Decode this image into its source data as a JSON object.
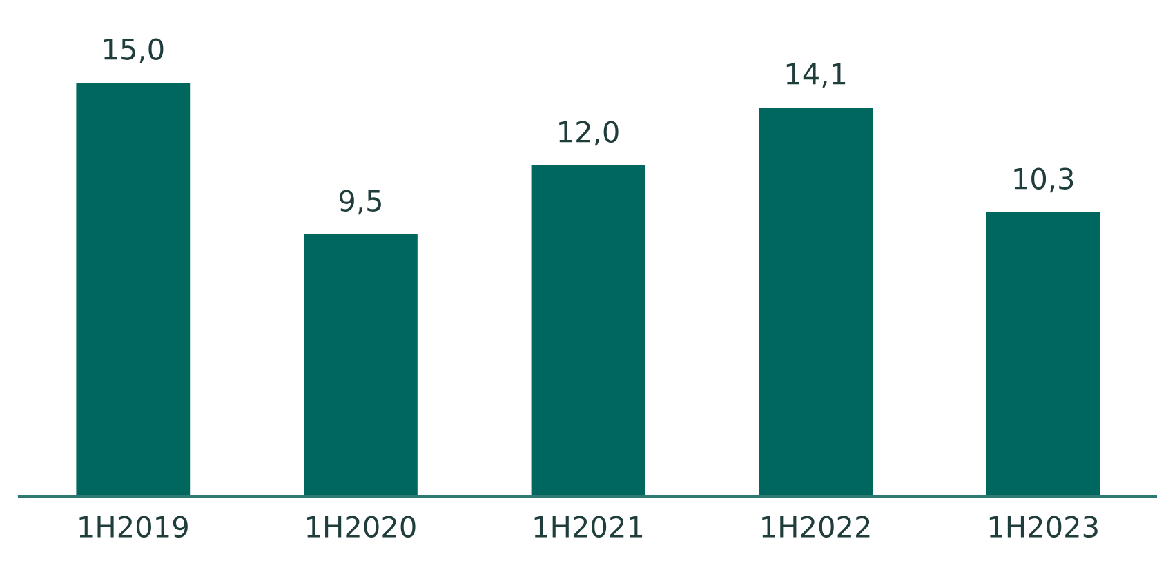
{
  "chart_data": {
    "type": "bar",
    "categories": [
      "1H2019",
      "1H2020",
      "1H2021",
      "1H2022",
      "1H2023"
    ],
    "values": [
      15.0,
      9.5,
      12.0,
      14.1,
      10.3
    ],
    "value_labels": [
      "15,0",
      "9,5",
      "12,0",
      "14,1",
      "10,3"
    ],
    "color": "#00675f",
    "tick_labels": "x",
    "grid": false,
    "legend": false
  }
}
